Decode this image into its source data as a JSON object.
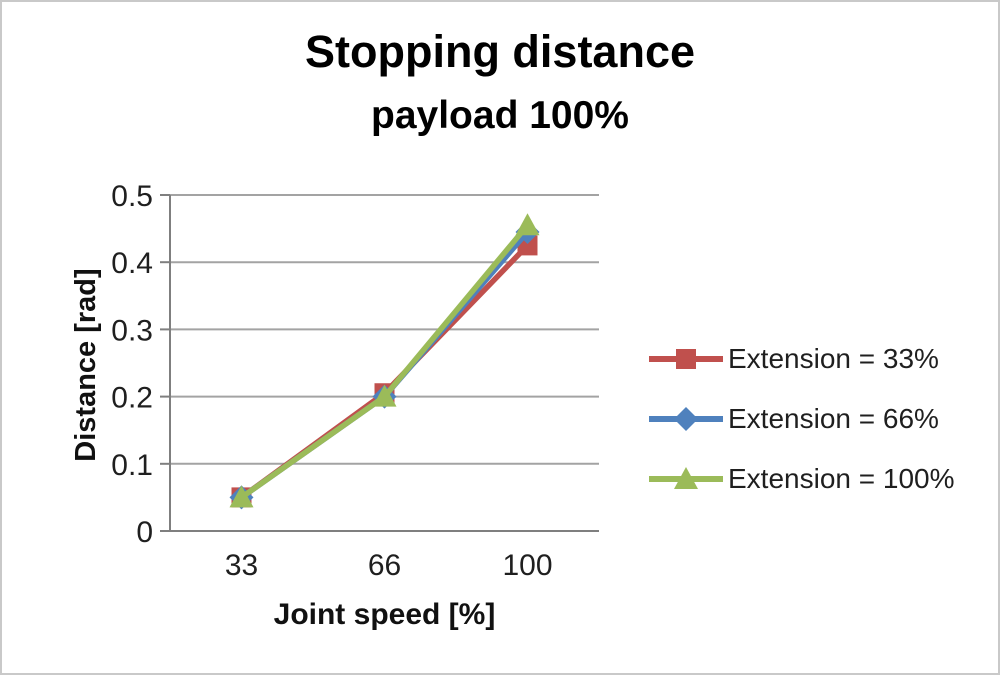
{
  "chart_data": {
    "type": "line",
    "title": "Stopping distance",
    "subtitle": "payload 100%",
    "xlabel": "Joint speed [%]",
    "ylabel": "Distance [rad]",
    "categories": [
      "33",
      "66",
      "100"
    ],
    "x_values": [
      33,
      66,
      100
    ],
    "ylim": [
      0,
      0.5
    ],
    "yticks": [
      0,
      0.1,
      0.2,
      0.3,
      0.4,
      0.5
    ],
    "ytick_labels": [
      "0",
      "0.1",
      "0.2",
      "0.3",
      "0.4",
      "0.5"
    ],
    "grid": "horizontal",
    "legend_position": "right",
    "series": [
      {
        "name": "Extension = 33%",
        "marker": "square",
        "color": "#C0504D",
        "values": [
          0.05,
          0.205,
          0.425
        ]
      },
      {
        "name": "Extension = 66%",
        "marker": "diamond",
        "color": "#4F81BD",
        "values": [
          0.05,
          0.2,
          0.445
        ]
      },
      {
        "name": "Extension = 100%",
        "marker": "triangle",
        "color": "#9BBB59",
        "values": [
          0.05,
          0.2,
          0.455
        ]
      }
    ]
  },
  "colors": {
    "gridline": "#A3A3A3",
    "axis": "#7F7F7F",
    "tick_text": "#1F1F1F",
    "title_text": "#000000",
    "frame_border": "#C9C9C9",
    "background": "#FFFFFF"
  }
}
